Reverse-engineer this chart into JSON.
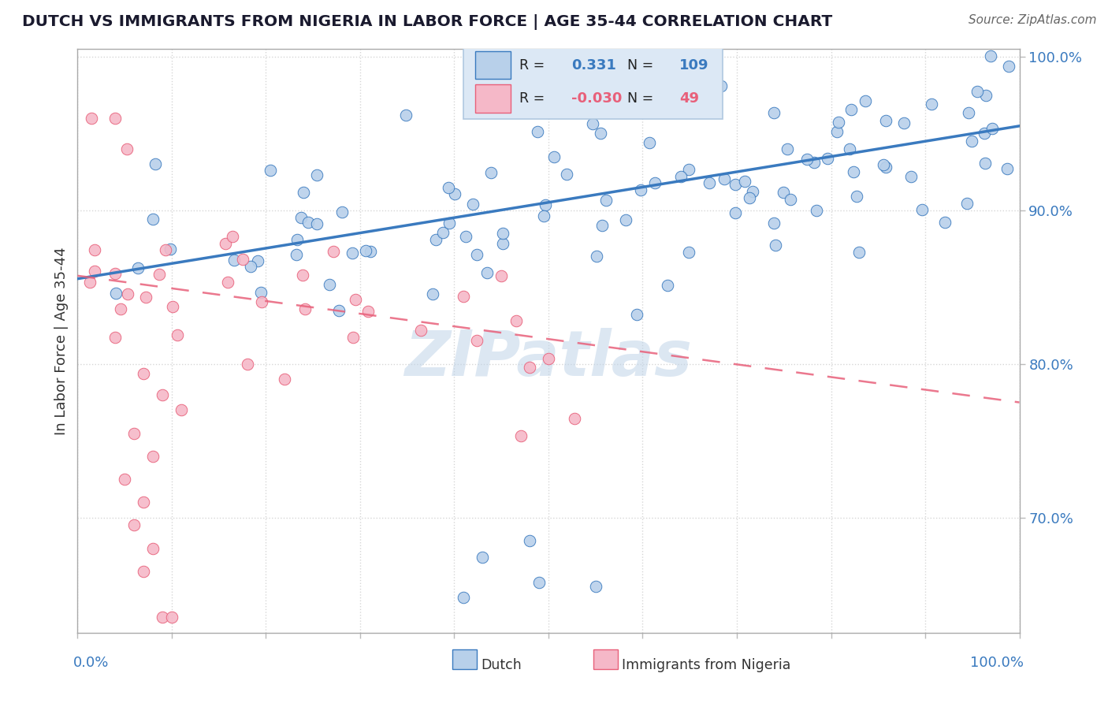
{
  "title": "DUTCH VS IMMIGRANTS FROM NIGERIA IN LABOR FORCE | AGE 35-44 CORRELATION CHART",
  "source": "Source: ZipAtlas.com",
  "ylabel": "In Labor Force | Age 35-44",
  "xlim": [
    0.0,
    1.0
  ],
  "ylim": [
    0.625,
    1.005
  ],
  "dutch_color": "#b8d0ea",
  "nigeria_color": "#f5b8c8",
  "dutch_line_color": "#3a7abf",
  "nigeria_line_color": "#e8607a",
  "dutch_R": 0.331,
  "dutch_N": 109,
  "nigeria_R": -0.03,
  "nigeria_N": 49,
  "legend_box_color": "#dce8f5",
  "legend_border_color": "#b0c8e0",
  "watermark": "ZIPatlas",
  "title_color": "#1a1a2e",
  "axis_label_color": "#3a7abf",
  "dutch_trend_x0": 0.0,
  "dutch_trend_y0": 0.8555,
  "dutch_trend_x1": 1.0,
  "dutch_trend_y1": 0.955,
  "nigeria_trend_x0": 0.0,
  "nigeria_trend_y0": 0.8575,
  "nigeria_trend_x1": 1.0,
  "nigeria_trend_y1": 0.775
}
